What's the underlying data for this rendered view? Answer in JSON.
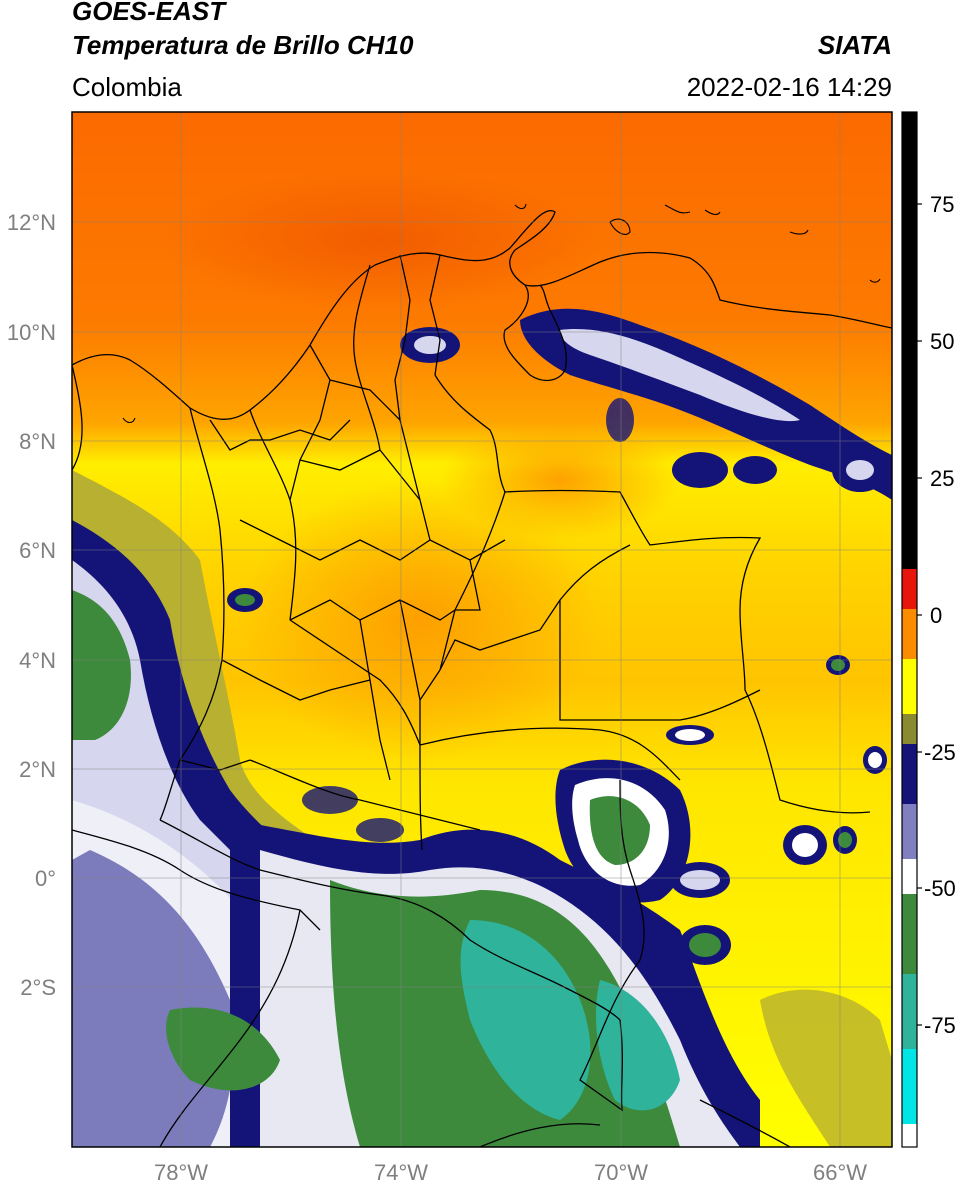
{
  "header": {
    "satellite": "GOES-EAST",
    "product": "Temperatura de Brillo CH10",
    "region": "Colombia",
    "agency": "SIATA",
    "timestamp": "2022-02-16 14:29"
  },
  "map": {
    "lat_ticks": [
      "12°N",
      "10°N",
      "8°N",
      "6°N",
      "4°N",
      "2°N",
      "0°",
      "2°S"
    ],
    "lon_ticks": [
      "78°W",
      "74°W",
      "70°W",
      "66°W"
    ]
  },
  "colorbar": {
    "ticks": [
      "75",
      "50",
      "25",
      "0",
      "-25",
      "-50",
      "-75"
    ],
    "colors": {
      "black": "#000000",
      "red": "#e8160a",
      "orange": "#fb8c00",
      "yellow": "#ffff00",
      "olive": "#8a8a30",
      "navy": "#141478",
      "white": "#ffffff",
      "green": "#3d8a3d",
      "teal": "#2fb39a",
      "cyan": "#00e5e5"
    }
  }
}
